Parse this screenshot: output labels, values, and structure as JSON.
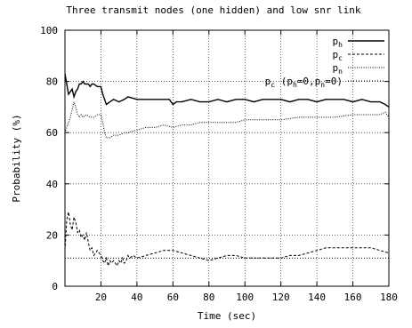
{
  "chart_data": {
    "type": "line",
    "title": "Three transmit nodes (one hidden) and low snr link",
    "xlabel": "Time (sec)",
    "ylabel": "Probability (%)",
    "xlim": [
      0,
      180
    ],
    "ylim": [
      0,
      100
    ],
    "xticks": [
      20,
      40,
      60,
      80,
      100,
      120,
      140,
      160,
      180
    ],
    "yticks": [
      0,
      20,
      40,
      60,
      80,
      100
    ],
    "grid": true,
    "legend_position": "top-right",
    "reference_line": {
      "name_parts": [
        "p",
        "c",
        " (p",
        "h",
        "=0,p",
        "n",
        "=0)"
      ],
      "value": 11,
      "style": "dotted"
    },
    "series": [
      {
        "name": "ph",
        "name_base": "p",
        "name_sub": "h",
        "style": "solid",
        "points": [
          [
            0,
            83
          ],
          [
            1,
            79
          ],
          [
            2,
            75
          ],
          [
            3,
            76
          ],
          [
            4,
            77
          ],
          [
            5,
            74
          ],
          [
            6,
            76
          ],
          [
            7,
            77
          ],
          [
            8,
            79
          ],
          [
            9,
            79
          ],
          [
            10,
            80
          ],
          [
            11,
            79
          ],
          [
            12,
            79
          ],
          [
            13,
            79
          ],
          [
            14,
            78
          ],
          [
            15,
            79
          ],
          [
            16,
            79
          ],
          [
            18,
            78
          ],
          [
            20,
            78
          ],
          [
            21,
            75
          ],
          [
            22,
            73
          ],
          [
            23,
            71
          ],
          [
            25,
            72
          ],
          [
            27,
            73
          ],
          [
            30,
            72
          ],
          [
            33,
            73
          ],
          [
            35,
            74
          ],
          [
            40,
            73
          ],
          [
            45,
            73
          ],
          [
            50,
            73
          ],
          [
            55,
            73
          ],
          [
            58,
            73
          ],
          [
            60,
            71
          ],
          [
            62,
            72
          ],
          [
            65,
            72
          ],
          [
            70,
            73
          ],
          [
            75,
            72
          ],
          [
            80,
            72
          ],
          [
            85,
            73
          ],
          [
            90,
            72
          ],
          [
            95,
            73
          ],
          [
            100,
            73
          ],
          [
            105,
            72
          ],
          [
            110,
            73
          ],
          [
            115,
            73
          ],
          [
            120,
            73
          ],
          [
            125,
            72
          ],
          [
            130,
            73
          ],
          [
            135,
            73
          ],
          [
            140,
            72
          ],
          [
            145,
            73
          ],
          [
            150,
            73
          ],
          [
            155,
            73
          ],
          [
            160,
            72
          ],
          [
            165,
            73
          ],
          [
            170,
            72
          ],
          [
            175,
            72
          ],
          [
            178,
            71
          ],
          [
            180,
            70
          ]
        ]
      },
      {
        "name": "pc",
        "name_base": "p",
        "name_sub": "c",
        "style": "dashed",
        "points": [
          [
            0,
            14
          ],
          [
            1,
            26
          ],
          [
            2,
            29
          ],
          [
            3,
            24
          ],
          [
            4,
            22
          ],
          [
            5,
            27
          ],
          [
            6,
            25
          ],
          [
            7,
            21
          ],
          [
            8,
            22
          ],
          [
            9,
            19
          ],
          [
            10,
            20
          ],
          [
            11,
            18
          ],
          [
            12,
            21
          ],
          [
            13,
            17
          ],
          [
            14,
            14
          ],
          [
            15,
            15
          ],
          [
            16,
            12
          ],
          [
            17,
            13
          ],
          [
            18,
            14
          ],
          [
            19,
            13
          ],
          [
            20,
            12
          ],
          [
            21,
            10
          ],
          [
            22,
            9
          ],
          [
            23,
            11
          ],
          [
            24,
            8
          ],
          [
            25,
            10
          ],
          [
            26,
            9
          ],
          [
            27,
            10
          ],
          [
            28,
            9
          ],
          [
            29,
            8
          ],
          [
            30,
            10
          ],
          [
            31,
            9
          ],
          [
            32,
            11
          ],
          [
            33,
            9
          ],
          [
            34,
            10
          ],
          [
            35,
            12
          ],
          [
            36,
            11
          ],
          [
            38,
            12
          ],
          [
            40,
            11
          ],
          [
            45,
            12
          ],
          [
            50,
            13
          ],
          [
            55,
            14
          ],
          [
            60,
            14
          ],
          [
            65,
            13
          ],
          [
            70,
            12
          ],
          [
            75,
            11
          ],
          [
            80,
            10
          ],
          [
            85,
            11
          ],
          [
            90,
            12
          ],
          [
            95,
            12
          ],
          [
            100,
            11
          ],
          [
            105,
            11
          ],
          [
            110,
            11
          ],
          [
            115,
            11
          ],
          [
            120,
            11
          ],
          [
            125,
            12
          ],
          [
            130,
            12
          ],
          [
            135,
            13
          ],
          [
            140,
            14
          ],
          [
            145,
            15
          ],
          [
            150,
            15
          ],
          [
            155,
            15
          ],
          [
            160,
            15
          ],
          [
            165,
            15
          ],
          [
            170,
            15
          ],
          [
            175,
            14
          ],
          [
            180,
            13
          ]
        ]
      },
      {
        "name": "pn",
        "name_base": "p",
        "name_sub": "n",
        "style": "dotted",
        "points": [
          [
            0,
            60
          ],
          [
            1,
            62
          ],
          [
            2,
            64
          ],
          [
            3,
            66
          ],
          [
            4,
            69
          ],
          [
            5,
            72
          ],
          [
            6,
            70
          ],
          [
            7,
            67
          ],
          [
            8,
            66
          ],
          [
            9,
            67
          ],
          [
            10,
            66
          ],
          [
            12,
            67
          ],
          [
            14,
            66
          ],
          [
            16,
            66
          ],
          [
            18,
            67
          ],
          [
            20,
            67
          ],
          [
            21,
            64
          ],
          [
            22,
            60
          ],
          [
            23,
            58
          ],
          [
            25,
            58
          ],
          [
            27,
            59
          ],
          [
            30,
            59
          ],
          [
            33,
            60
          ],
          [
            35,
            60
          ],
          [
            40,
            61
          ],
          [
            45,
            62
          ],
          [
            50,
            62
          ],
          [
            55,
            63
          ],
          [
            60,
            62
          ],
          [
            65,
            63
          ],
          [
            70,
            63
          ],
          [
            75,
            64
          ],
          [
            80,
            64
          ],
          [
            85,
            64
          ],
          [
            90,
            64
          ],
          [
            95,
            64
          ],
          [
            100,
            65
          ],
          [
            110,
            65
          ],
          [
            120,
            65
          ],
          [
            130,
            66
          ],
          [
            140,
            66
          ],
          [
            150,
            66
          ],
          [
            160,
            67
          ],
          [
            170,
            67
          ],
          [
            175,
            67
          ],
          [
            178,
            68
          ],
          [
            180,
            66
          ]
        ]
      }
    ]
  }
}
